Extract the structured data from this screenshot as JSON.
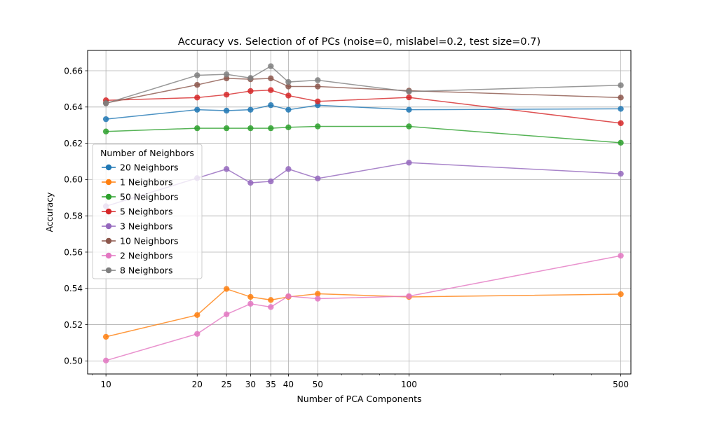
{
  "chart_data": {
    "type": "line",
    "title": "Accuracy vs. Selection of of PCs (noise=0, mislabel=0.2, test size=0.7)",
    "xlabel": "Number of PCA Components",
    "ylabel": "Accuracy",
    "x_scale": "log",
    "x": [
      10,
      20,
      25,
      30,
      35,
      40,
      50,
      100,
      500
    ],
    "x_tick_labels": [
      "10",
      "20",
      "25",
      "30",
      "35",
      "40",
      "50",
      "100",
      "500"
    ],
    "xlim": [
      8.7,
      540
    ],
    "ylim": [
      0.4928,
      0.6712
    ],
    "y_ticks": [
      0.5,
      0.52,
      0.54,
      0.56,
      0.58,
      0.6,
      0.62,
      0.64,
      0.66
    ],
    "y_tick_labels": [
      "0.50",
      "0.52",
      "0.54",
      "0.56",
      "0.58",
      "0.60",
      "0.62",
      "0.64",
      "0.66"
    ],
    "grid": true,
    "legend": {
      "title": "Number of Neighbors",
      "placement": "center-left"
    },
    "series": [
      {
        "name": "20 Neighbors",
        "color": "#1f77b4",
        "values": [
          0.6333,
          0.6385,
          0.638,
          0.6385,
          0.641,
          0.6385,
          0.641,
          0.6385,
          0.639
        ]
      },
      {
        "name": "1 Neighbors",
        "color": "#ff7f0e",
        "values": [
          0.5133,
          0.5253,
          0.5397,
          0.5353,
          0.5336,
          0.5353,
          0.537,
          0.5353,
          0.5368
        ]
      },
      {
        "name": "50 Neighbors",
        "color": "#2ca02c",
        "values": [
          0.6265,
          0.6283,
          0.6283,
          0.6283,
          0.6283,
          0.6288,
          0.6293,
          0.6293,
          0.6203
        ]
      },
      {
        "name": "5 Neighbors",
        "color": "#d62728",
        "values": [
          0.6437,
          0.6452,
          0.6468,
          0.6488,
          0.6493,
          0.6463,
          0.6431,
          0.6453,
          0.6311
        ]
      },
      {
        "name": "3 Neighbors",
        "color": "#9467bd",
        "values": [
          0.5853,
          0.6008,
          0.6058,
          0.5982,
          0.599,
          0.6058,
          0.6006,
          0.6093,
          0.6032
        ]
      },
      {
        "name": "10 Neighbors",
        "color": "#8c564b",
        "values": [
          0.6422,
          0.6522,
          0.6558,
          0.6553,
          0.6558,
          0.6513,
          0.6513,
          0.649,
          0.6452
        ]
      },
      {
        "name": "2 Neighbors",
        "color": "#e377c2",
        "values": [
          0.5002,
          0.5149,
          0.5257,
          0.5315,
          0.5297,
          0.5357,
          0.5343,
          0.5357,
          0.558
        ]
      },
      {
        "name": "8 Neighbors",
        "color": "#7f7f7f",
        "values": [
          0.642,
          0.6575,
          0.658,
          0.656,
          0.6625,
          0.6538,
          0.6548,
          0.6485,
          0.652
        ]
      }
    ]
  }
}
